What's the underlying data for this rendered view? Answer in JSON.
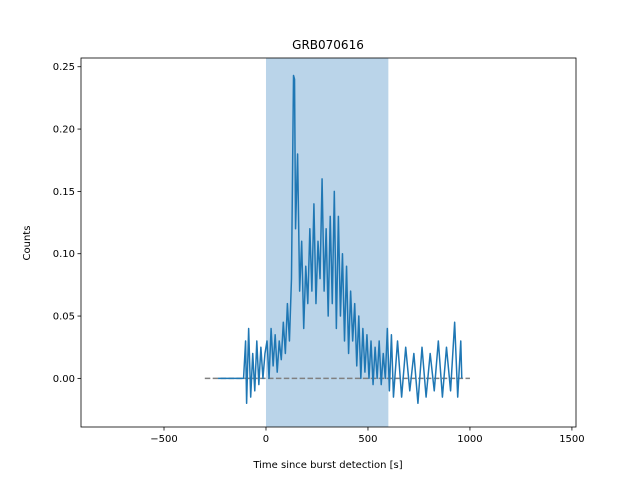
{
  "chart_data": {
    "type": "line",
    "title": "GRB070616",
    "x_label": "Time since burst detection [s]",
    "y_label": "Counts",
    "color": "#1f77b4",
    "x": [
      -235,
      -110,
      -100,
      -95,
      -85,
      -75,
      -65,
      -55,
      -45,
      -35,
      -25,
      -15,
      -5,
      5,
      15,
      25,
      35,
      45,
      55,
      65,
      75,
      85,
      95,
      105,
      115,
      125,
      135,
      140,
      145,
      155,
      165,
      175,
      185,
      195,
      205,
      215,
      225,
      235,
      245,
      255,
      265,
      275,
      285,
      295,
      305,
      315,
      325,
      335,
      345,
      355,
      365,
      375,
      385,
      395,
      405,
      415,
      425,
      435,
      445,
      455,
      465,
      475,
      485,
      495,
      505,
      515,
      525,
      535,
      545,
      555,
      565,
      575,
      585,
      595,
      605,
      615,
      625,
      645,
      665,
      685,
      705,
      725,
      745,
      765,
      785,
      805,
      825,
      845,
      865,
      885,
      905,
      925,
      940,
      955,
      960
    ],
    "values": [
      0,
      0,
      0.03,
      -0.02,
      0.04,
      -0.015,
      0.02,
      -0.01,
      0.03,
      -0.005,
      0.025,
      0.0,
      0.02,
      0.03,
      0.0,
      0.04,
      0.01,
      0.035,
      0.005,
      0.03,
      0.015,
      0.045,
      0.02,
      0.06,
      0.03,
      0.08,
      0.243,
      0.24,
      0.12,
      0.18,
      0.07,
      0.11,
      0.04,
      0.09,
      0.06,
      0.12,
      0.07,
      0.14,
      0.06,
      0.11,
      0.08,
      0.16,
      0.07,
      0.12,
      0.05,
      0.13,
      0.06,
      0.15,
      0.04,
      0.13,
      0.05,
      0.1,
      0.03,
      0.09,
      0.02,
      0.07,
      0.03,
      0.06,
      0.01,
      0.05,
      0.0,
      0.04,
      0.005,
      0.035,
      0.0,
      0.03,
      -0.005,
      0.025,
      0.0,
      0.03,
      -0.005,
      0.02,
      0.0,
      0.04,
      -0.01,
      0.035,
      -0.015,
      0.03,
      -0.015,
      0.025,
      -0.01,
      0.02,
      -0.02,
      0.025,
      -0.015,
      0.02,
      -0.01,
      0.03,
      -0.015,
      0.025,
      -0.01,
      0.045,
      -0.015,
      0.03,
      0.0
    ],
    "span": [
      0,
      600
    ],
    "span_color": "#bad4e9",
    "hline": {
      "y": 0,
      "x": [
        -300,
        1000
      ],
      "color": "#808080"
    },
    "xlim": [
      -907,
      1520
    ],
    "ylim": [
      -0.039,
      0.257
    ],
    "xticks": [
      {
        "value": -500,
        "label": "−500"
      },
      0,
      500,
      1000,
      1500
    ],
    "yticks": [
      {
        "value": 0,
        "label": "0.00"
      },
      {
        "value": 0.05,
        "label": "0.05"
      },
      {
        "value": 0.1,
        "label": "0.10"
      },
      {
        "value": 0.15,
        "label": "0.15"
      },
      {
        "value": 0.2,
        "label": "0.20"
      },
      {
        "value": 0.25,
        "label": "0.25"
      }
    ]
  }
}
